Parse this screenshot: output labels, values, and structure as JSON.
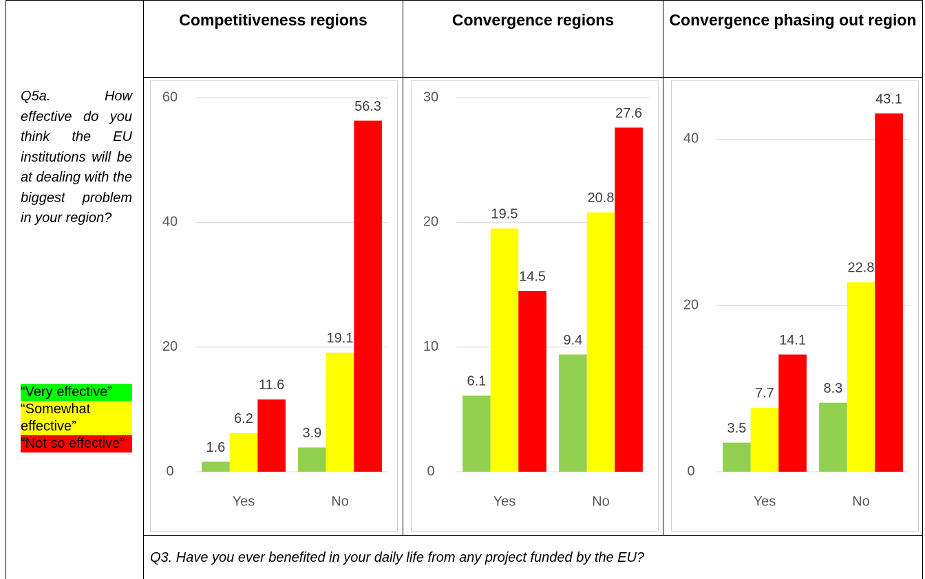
{
  "table": {
    "headers": [
      "Competitiveness regions",
      "Convergence regions",
      "Convergence phasing out region"
    ],
    "question": "Q5a. How effective do you think the EU institutions will be at dealing with the biggest problem in your region?",
    "legend": [
      "“Very effective”",
      "“Somewhat effective”",
      "“Not so effective”"
    ],
    "footer": "Q3. Have you ever benefited in your daily life from any project funded by the EU?"
  },
  "chart_data": [
    {
      "type": "bar",
      "categories": [
        "Yes",
        "No"
      ],
      "ylim": [
        0,
        60
      ],
      "yticks": [
        0,
        20,
        40,
        60
      ],
      "grid": true,
      "series": [
        {
          "color": "#92d050",
          "values": [
            1.6,
            3.9
          ]
        },
        {
          "color": "#ffff00",
          "values": [
            6.2,
            19.1
          ]
        },
        {
          "color": "#ff0000",
          "values": [
            11.6,
            56.3
          ]
        }
      ]
    },
    {
      "type": "bar",
      "categories": [
        "Yes",
        "No"
      ],
      "ylim": [
        0,
        30
      ],
      "yticks": [
        0,
        10,
        20,
        30
      ],
      "grid": true,
      "series": [
        {
          "color": "#92d050",
          "values": [
            6.1,
            9.4
          ]
        },
        {
          "color": "#ffff00",
          "values": [
            19.5,
            20.8
          ]
        },
        {
          "color": "#ff0000",
          "values": [
            14.5,
            27.6
          ]
        }
      ]
    },
    {
      "type": "bar",
      "categories": [
        "Yes",
        "No"
      ],
      "ylim": [
        0,
        45
      ],
      "yticks": [
        0,
        20,
        40
      ],
      "grid": true,
      "series": [
        {
          "color": "#92d050",
          "values": [
            3.5,
            8.3
          ]
        },
        {
          "color": "#ffff00",
          "values": [
            7.7,
            22.8
          ]
        },
        {
          "color": "#ff0000",
          "values": [
            14.1,
            43.1
          ]
        }
      ]
    }
  ]
}
